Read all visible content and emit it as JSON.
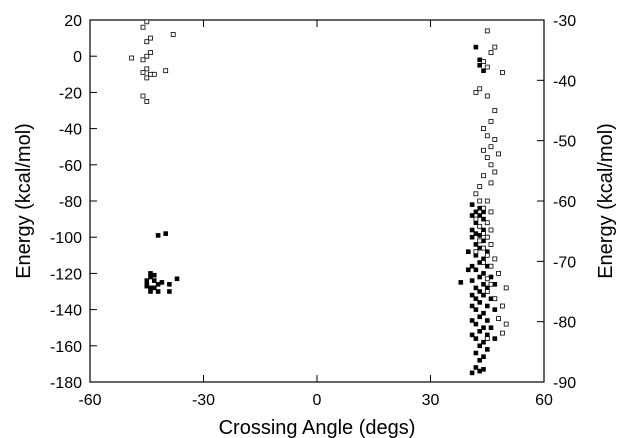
{
  "chart_data": {
    "type": "scatter",
    "title": "",
    "xlabel": "Crossing Angle (degs)",
    "ylabel": "Energy (kcal/mol)",
    "y2label": "Energy (kcal/mol)",
    "xlim": [
      -60,
      60
    ],
    "ylim": [
      -180,
      20
    ],
    "y2lim": [
      -90,
      -30
    ],
    "xticks": [
      -60,
      -30,
      0,
      30,
      60
    ],
    "yticks": [
      -180,
      -160,
      -140,
      -120,
      -100,
      -80,
      -60,
      -40,
      -20,
      0,
      20
    ],
    "y2ticks": [
      -90,
      -80,
      -70,
      -60,
      -50,
      -40,
      -30
    ],
    "grid": false,
    "series": [
      {
        "marker": "filled-square",
        "color": "#000000",
        "axis": "left",
        "points": [
          [
            -42,
            -99
          ],
          [
            -40,
            -98
          ],
          [
            -44,
            -120
          ],
          [
            -44,
            -122
          ],
          [
            -45,
            -124
          ],
          [
            -43,
            -124
          ],
          [
            -45,
            -126
          ],
          [
            -42,
            -126
          ],
          [
            -44,
            -128
          ],
          [
            -43,
            -128
          ],
          [
            -41,
            -125
          ],
          [
            -39,
            -126
          ],
          [
            -37,
            -123
          ],
          [
            -44,
            -130
          ],
          [
            -42,
            -130
          ],
          [
            -39,
            -130
          ],
          [
            -45,
            -127
          ],
          [
            -43,
            -121
          ],
          [
            42,
            5
          ],
          [
            43,
            -2
          ],
          [
            43,
            -5
          ],
          [
            44,
            -8
          ],
          [
            41,
            -82
          ],
          [
            43,
            -84
          ],
          [
            42,
            -86
          ],
          [
            44,
            -86
          ],
          [
            43,
            -88
          ],
          [
            41,
            -88
          ],
          [
            44,
            -90
          ],
          [
            42,
            -92
          ],
          [
            43,
            -94
          ],
          [
            41,
            -96
          ],
          [
            44,
            -96
          ],
          [
            42,
            -98
          ],
          [
            43,
            -99
          ],
          [
            45,
            -100
          ],
          [
            41,
            -100
          ],
          [
            44,
            -102
          ],
          [
            42,
            -104
          ],
          [
            43,
            -106
          ],
          [
            45,
            -108
          ],
          [
            40,
            -108
          ],
          [
            42,
            -110
          ],
          [
            44,
            -112
          ],
          [
            43,
            -114
          ],
          [
            41,
            -116
          ],
          [
            45,
            -116
          ],
          [
            42,
            -118
          ],
          [
            40,
            -118
          ],
          [
            44,
            -120
          ],
          [
            43,
            -122
          ],
          [
            46,
            -122
          ],
          [
            41,
            -124
          ],
          [
            38,
            -125
          ],
          [
            44,
            -126
          ],
          [
            42,
            -128
          ],
          [
            45,
            -128
          ],
          [
            47,
            -126
          ],
          [
            43,
            -130
          ],
          [
            41,
            -132
          ],
          [
            44,
            -132
          ],
          [
            42,
            -134
          ],
          [
            46,
            -134
          ],
          [
            43,
            -136
          ],
          [
            41,
            -138
          ],
          [
            45,
            -138
          ],
          [
            42,
            -140
          ],
          [
            44,
            -142
          ],
          [
            47,
            -140
          ],
          [
            43,
            -144
          ],
          [
            41,
            -146
          ],
          [
            45,
            -146
          ],
          [
            42,
            -148
          ],
          [
            44,
            -150
          ],
          [
            46,
            -150
          ],
          [
            43,
            -152
          ],
          [
            41,
            -154
          ],
          [
            45,
            -154
          ],
          [
            47,
            -156
          ],
          [
            42,
            -156
          ],
          [
            44,
            -158
          ],
          [
            43,
            -160
          ],
          [
            45,
            -162
          ],
          [
            42,
            -164
          ],
          [
            44,
            -166
          ],
          [
            43,
            -168
          ],
          [
            42,
            -172
          ],
          [
            41,
            -175
          ],
          [
            43,
            -174
          ],
          [
            44,
            -173
          ]
        ]
      },
      {
        "marker": "open-square",
        "color": "#000000",
        "axis": "left",
        "points": [
          [
            -45,
            19
          ],
          [
            -46,
            16
          ],
          [
            -38,
            12
          ],
          [
            -44,
            10
          ],
          [
            -45,
            8
          ],
          [
            -44,
            2
          ],
          [
            -45,
            0
          ],
          [
            -49,
            -1
          ],
          [
            -46,
            -2
          ],
          [
            -45,
            -7
          ],
          [
            -46,
            -9
          ],
          [
            -44,
            -10
          ],
          [
            -43,
            -10
          ],
          [
            -45,
            -12
          ],
          [
            -40,
            -8
          ],
          [
            -46,
            -22
          ],
          [
            -45,
            -25
          ],
          [
            45,
            14
          ],
          [
            47,
            5
          ],
          [
            46,
            2
          ],
          [
            44,
            -3
          ],
          [
            45,
            -6
          ],
          [
            49,
            -9
          ],
          [
            42,
            -20
          ],
          [
            43,
            -18
          ],
          [
            45,
            -22
          ],
          [
            47,
            -30
          ],
          [
            46,
            -36
          ],
          [
            44,
            -40
          ],
          [
            45,
            -44
          ],
          [
            47,
            -46
          ],
          [
            46,
            -50
          ],
          [
            44,
            -52
          ],
          [
            48,
            -54
          ],
          [
            45,
            -56
          ],
          [
            46,
            -60
          ],
          [
            47,
            -64
          ],
          [
            44,
            -66
          ],
          [
            46,
            -70
          ],
          [
            43,
            -72
          ],
          [
            42,
            -76
          ],
          [
            45,
            -80
          ],
          [
            43,
            -80
          ],
          [
            44,
            -84
          ],
          [
            46,
            -86
          ],
          [
            42,
            -90
          ],
          [
            45,
            -92
          ],
          [
            43,
            -94
          ],
          [
            46,
            -96
          ],
          [
            44,
            -98
          ],
          [
            45,
            -100
          ],
          [
            43,
            -102
          ],
          [
            46,
            -104
          ],
          [
            44,
            -106
          ],
          [
            42,
            -108
          ],
          [
            45,
            -110
          ],
          [
            47,
            -112
          ],
          [
            44,
            -114
          ],
          [
            46,
            -116
          ],
          [
            48,
            -120
          ],
          [
            45,
            -123
          ],
          [
            46,
            -126
          ],
          [
            50,
            -128
          ],
          [
            45,
            -130
          ],
          [
            47,
            -134
          ],
          [
            49,
            -138
          ],
          [
            48,
            -145
          ],
          [
            50,
            -148
          ],
          [
            49,
            -153
          ],
          [
            45,
            -156
          ]
        ]
      }
    ]
  }
}
